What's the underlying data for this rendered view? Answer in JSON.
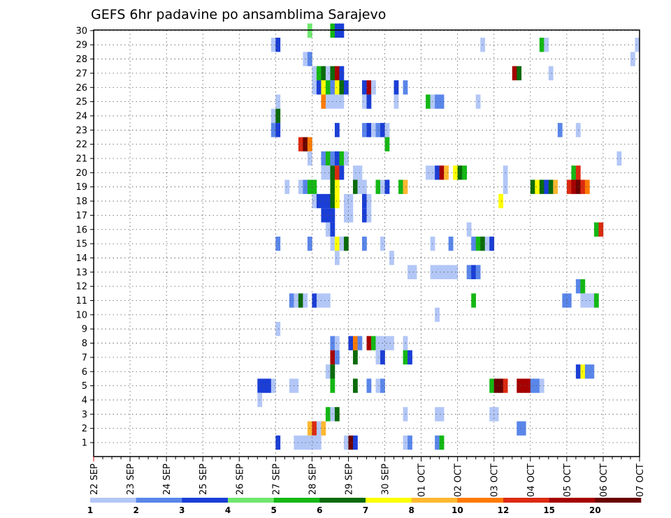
{
  "chart_data": {
    "type": "heatmap",
    "title": "GEFS 6hr padavine po ansamblima Sarajevo",
    "x_tick_labels": [
      "22 SEP",
      "23 SEP",
      "24 SEP",
      "25 SEP",
      "26 SEP",
      "27 SEP",
      "28 SEP",
      "29 SEP",
      "30 SEP",
      "01 OCT",
      "02 OCT",
      "03 OCT",
      "04 OCT",
      "05 OCT",
      "06 OCT",
      "07 OCT"
    ],
    "y_tick_labels": [
      "1",
      "2",
      "3",
      "4",
      "5",
      "6",
      "7",
      "8",
      "9",
      "10",
      "11",
      "12",
      "13",
      "14",
      "15",
      "16",
      "17",
      "18",
      "19",
      "20",
      "21",
      "22",
      "23",
      "24",
      "25",
      "26",
      "27",
      "28",
      "29",
      "30"
    ],
    "x_steps_per_label": 4,
    "ylim": [
      1,
      30
    ],
    "grid": true,
    "colorbar": {
      "labels": [
        "1",
        "2",
        "3",
        "4",
        "5",
        "6",
        "7",
        "8",
        "10",
        "12",
        "15",
        "20"
      ],
      "colors": [
        "#b3c7f7",
        "#5a86ea",
        "#1a3ed6",
        "#6fe86f",
        "#14b814",
        "#0a6b0a",
        "#ffff00",
        "#ffb830",
        "#ff7a00",
        "#dc2a10",
        "#a60000",
        "#6b0000"
      ]
    },
    "cells": [
      [
        30,
        47,
        4
      ],
      [
        30,
        52,
        5
      ],
      [
        30,
        53,
        3
      ],
      [
        30,
        54,
        3
      ],
      [
        29,
        39,
        1
      ],
      [
        29,
        40,
        3
      ],
      [
        29,
        85,
        1
      ],
      [
        29,
        98,
        5
      ],
      [
        29,
        99,
        1
      ],
      [
        29,
        119,
        1
      ],
      [
        28,
        46,
        1
      ],
      [
        28,
        47,
        2
      ],
      [
        28,
        118,
        1
      ],
      [
        27,
        48,
        1
      ],
      [
        27,
        49,
        5
      ],
      [
        27,
        50,
        6
      ],
      [
        27,
        51,
        1
      ],
      [
        27,
        52,
        6
      ],
      [
        27,
        53,
        11
      ],
      [
        27,
        54,
        3
      ],
      [
        27,
        92,
        11
      ],
      [
        27,
        93,
        6
      ],
      [
        27,
        100,
        1
      ],
      [
        26,
        48,
        1
      ],
      [
        26,
        49,
        3
      ],
      [
        26,
        50,
        7
      ],
      [
        26,
        51,
        5
      ],
      [
        26,
        52,
        2
      ],
      [
        26,
        53,
        7
      ],
      [
        26,
        54,
        6
      ],
      [
        26,
        55,
        3
      ],
      [
        26,
        59,
        3
      ],
      [
        26,
        60,
        11
      ],
      [
        26,
        61,
        1
      ],
      [
        26,
        66,
        3
      ],
      [
        26,
        68,
        2
      ],
      [
        25,
        40,
        1
      ],
      [
        25,
        50,
        9
      ],
      [
        25,
        51,
        1
      ],
      [
        25,
        52,
        1
      ],
      [
        25,
        53,
        1
      ],
      [
        25,
        54,
        1
      ],
      [
        25,
        59,
        1
      ],
      [
        25,
        60,
        3
      ],
      [
        25,
        66,
        1
      ],
      [
        25,
        73,
        5
      ],
      [
        25,
        74,
        1
      ],
      [
        25,
        75,
        2
      ],
      [
        25,
        76,
        2
      ],
      [
        25,
        84,
        1
      ],
      [
        24,
        39,
        1
      ],
      [
        24,
        40,
        6
      ],
      [
        23,
        39,
        2
      ],
      [
        23,
        40,
        3
      ],
      [
        23,
        53,
        3
      ],
      [
        23,
        59,
        2
      ],
      [
        23,
        60,
        3
      ],
      [
        23,
        61,
        1
      ],
      [
        23,
        62,
        2
      ],
      [
        23,
        63,
        3
      ],
      [
        23,
        64,
        1
      ],
      [
        23,
        102,
        2
      ],
      [
        23,
        106,
        1
      ],
      [
        22,
        45,
        10
      ],
      [
        22,
        46,
        12
      ],
      [
        22,
        47,
        9
      ],
      [
        22,
        64,
        5
      ],
      [
        21,
        47,
        1
      ],
      [
        21,
        50,
        2
      ],
      [
        21,
        51,
        5
      ],
      [
        21,
        52,
        2
      ],
      [
        21,
        53,
        3
      ],
      [
        21,
        54,
        5
      ],
      [
        21,
        55,
        1
      ],
      [
        21,
        115,
        1
      ],
      [
        20,
        50,
        1
      ],
      [
        20,
        51,
        1
      ],
      [
        20,
        52,
        6
      ],
      [
        20,
        53,
        10
      ],
      [
        20,
        54,
        3
      ],
      [
        20,
        57,
        1
      ],
      [
        20,
        58,
        1
      ],
      [
        20,
        73,
        1
      ],
      [
        20,
        74,
        1
      ],
      [
        20,
        75,
        3
      ],
      [
        20,
        76,
        11
      ],
      [
        20,
        77,
        8
      ],
      [
        20,
        79,
        7
      ],
      [
        20,
        80,
        6
      ],
      [
        20,
        81,
        5
      ],
      [
        20,
        90,
        1
      ],
      [
        20,
        105,
        5
      ],
      [
        20,
        106,
        10
      ],
      [
        19,
        42,
        1
      ],
      [
        19,
        45,
        1
      ],
      [
        19,
        46,
        2
      ],
      [
        19,
        47,
        5
      ],
      [
        19,
        48,
        5
      ],
      [
        19,
        52,
        6
      ],
      [
        19,
        53,
        7
      ],
      [
        19,
        57,
        6
      ],
      [
        19,
        58,
        1
      ],
      [
        19,
        59,
        1
      ],
      [
        19,
        62,
        5
      ],
      [
        19,
        63,
        1
      ],
      [
        19,
        64,
        3
      ],
      [
        19,
        67,
        5
      ],
      [
        19,
        68,
        8
      ],
      [
        19,
        90,
        1
      ],
      [
        19,
        96,
        6
      ],
      [
        19,
        97,
        7
      ],
      [
        19,
        98,
        6
      ],
      [
        19,
        99,
        3
      ],
      [
        19,
        100,
        6
      ],
      [
        19,
        101,
        8
      ],
      [
        19,
        104,
        10
      ],
      [
        19,
        105,
        11
      ],
      [
        19,
        106,
        12
      ],
      [
        19,
        107,
        10
      ],
      [
        19,
        108,
        9
      ],
      [
        18,
        48,
        1
      ],
      [
        18,
        49,
        3
      ],
      [
        18,
        50,
        3
      ],
      [
        18,
        51,
        3
      ],
      [
        18,
        52,
        6
      ],
      [
        18,
        53,
        7
      ],
      [
        18,
        55,
        1
      ],
      [
        18,
        56,
        1
      ],
      [
        18,
        59,
        3
      ],
      [
        18,
        60,
        1
      ],
      [
        18,
        89,
        7
      ],
      [
        17,
        50,
        3
      ],
      [
        17,
        51,
        3
      ],
      [
        17,
        52,
        3
      ],
      [
        17,
        55,
        1
      ],
      [
        17,
        56,
        1
      ],
      [
        17,
        59,
        3
      ],
      [
        17,
        60,
        1
      ],
      [
        16,
        51,
        1
      ],
      [
        16,
        52,
        3
      ],
      [
        16,
        82,
        1
      ],
      [
        16,
        110,
        5
      ],
      [
        16,
        111,
        10
      ],
      [
        15,
        40,
        2
      ],
      [
        15,
        47,
        2
      ],
      [
        15,
        52,
        1
      ],
      [
        15,
        53,
        7
      ],
      [
        15,
        54,
        1
      ],
      [
        15,
        55,
        6
      ],
      [
        15,
        59,
        2
      ],
      [
        15,
        63,
        1
      ],
      [
        15,
        74,
        1
      ],
      [
        15,
        78,
        2
      ],
      [
        15,
        83,
        2
      ],
      [
        15,
        84,
        5
      ],
      [
        15,
        85,
        6
      ],
      [
        15,
        86,
        1
      ],
      [
        15,
        87,
        3
      ],
      [
        14,
        53,
        1
      ],
      [
        14,
        65,
        1
      ],
      [
        13,
        69,
        1
      ],
      [
        13,
        70,
        1
      ],
      [
        13,
        74,
        1
      ],
      [
        13,
        75,
        1
      ],
      [
        13,
        76,
        1
      ],
      [
        13,
        77,
        1
      ],
      [
        13,
        78,
        1
      ],
      [
        13,
        79,
        1
      ],
      [
        13,
        82,
        2
      ],
      [
        13,
        83,
        3
      ],
      [
        13,
        84,
        2
      ],
      [
        12,
        106,
        2
      ],
      [
        12,
        107,
        5
      ],
      [
        11,
        43,
        2
      ],
      [
        11,
        44,
        1
      ],
      [
        11,
        45,
        6
      ],
      [
        11,
        46,
        1
      ],
      [
        11,
        48,
        3
      ],
      [
        11,
        49,
        1
      ],
      [
        11,
        50,
        1
      ],
      [
        11,
        51,
        1
      ],
      [
        11,
        83,
        5
      ],
      [
        11,
        103,
        2
      ],
      [
        11,
        104,
        2
      ],
      [
        11,
        107,
        1
      ],
      [
        11,
        108,
        1
      ],
      [
        11,
        109,
        1
      ],
      [
        11,
        110,
        5
      ],
      [
        10,
        75,
        1
      ],
      [
        9,
        40,
        1
      ],
      [
        8,
        52,
        2
      ],
      [
        8,
        53,
        1
      ],
      [
        8,
        56,
        3
      ],
      [
        8,
        57,
        9
      ],
      [
        8,
        58,
        2
      ],
      [
        8,
        60,
        11
      ],
      [
        8,
        61,
        5
      ],
      [
        8,
        62,
        1
      ],
      [
        8,
        63,
        1
      ],
      [
        8,
        64,
        1
      ],
      [
        8,
        65,
        1
      ],
      [
        8,
        68,
        1
      ],
      [
        7,
        52,
        11
      ],
      [
        7,
        53,
        2
      ],
      [
        7,
        57,
        6
      ],
      [
        7,
        62,
        1
      ],
      [
        7,
        63,
        3
      ],
      [
        7,
        68,
        5
      ],
      [
        7,
        69,
        3
      ],
      [
        6,
        51,
        1
      ],
      [
        6,
        52,
        6
      ],
      [
        6,
        106,
        3
      ],
      [
        6,
        107,
        7
      ],
      [
        6,
        108,
        2
      ],
      [
        6,
        109,
        2
      ],
      [
        5,
        36,
        3
      ],
      [
        5,
        37,
        3
      ],
      [
        5,
        38,
        3
      ],
      [
        5,
        39,
        1
      ],
      [
        5,
        43,
        1
      ],
      [
        5,
        44,
        1
      ],
      [
        5,
        52,
        5
      ],
      [
        5,
        57,
        6
      ],
      [
        5,
        60,
        2
      ],
      [
        5,
        62,
        1
      ],
      [
        5,
        63,
        2
      ],
      [
        5,
        87,
        5
      ],
      [
        5,
        88,
        12
      ],
      [
        5,
        89,
        12
      ],
      [
        5,
        90,
        10
      ],
      [
        5,
        93,
        11
      ],
      [
        5,
        94,
        11
      ],
      [
        5,
        95,
        11
      ],
      [
        5,
        96,
        2
      ],
      [
        5,
        97,
        2
      ],
      [
        5,
        98,
        1
      ],
      [
        4,
        36,
        1
      ],
      [
        3,
        51,
        5
      ],
      [
        3,
        52,
        1
      ],
      [
        3,
        53,
        6
      ],
      [
        3,
        68,
        1
      ],
      [
        3,
        75,
        1
      ],
      [
        3,
        76,
        1
      ],
      [
        3,
        87,
        1
      ],
      [
        3,
        88,
        1
      ],
      [
        2,
        47,
        8
      ],
      [
        2,
        48,
        10
      ],
      [
        2,
        49,
        1
      ],
      [
        2,
        50,
        8
      ],
      [
        2,
        93,
        2
      ],
      [
        2,
        94,
        2
      ],
      [
        1,
        40,
        3
      ],
      [
        1,
        44,
        1
      ],
      [
        1,
        45,
        1
      ],
      [
        1,
        46,
        1
      ],
      [
        1,
        47,
        1
      ],
      [
        1,
        48,
        1
      ],
      [
        1,
        49,
        1
      ],
      [
        1,
        55,
        1
      ],
      [
        1,
        56,
        12
      ],
      [
        1,
        57,
        3
      ],
      [
        1,
        68,
        1
      ],
      [
        1,
        69,
        2
      ],
      [
        1,
        75,
        2
      ],
      [
        1,
        76,
        5
      ]
    ]
  }
}
